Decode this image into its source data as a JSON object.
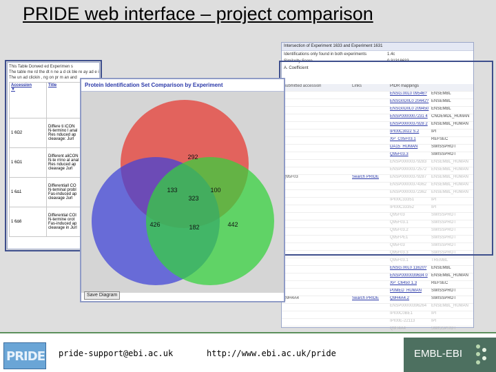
{
  "slide": {
    "title": "PRIDE web interface – project comparison"
  },
  "left_panel": {
    "intro_lines": [
      "This Table Dorwed ed Experimen s",
      "The table me rd the dt n ne a d ck ble re ay ad e ind",
      "The un ad clickin , ng on pr m  an and"
    ],
    "headers": [
      "Accession",
      "Title"
    ],
    "rows": [
      {
        "accession": "1 6Ω2",
        "title_lines": [
          "Differe ti  iCON",
          "N-termino l anal",
          "Res  nduced ap",
          "cleavage: Jurl"
        ]
      },
      {
        "accession": "1 6Ω1",
        "title_lines": [
          "Different aliCON",
          "N-te rrino al anal",
          "Res  nduced ap",
          "cleavage  Jurl"
        ]
      },
      {
        "accession": "1 6∆1",
        "title_lines": [
          "Differentiall CO",
          "N-teminal probl",
          "Fas-induced ap",
          "cleavage  Jurl"
        ]
      },
      {
        "accession": "1 6∆6",
        "title_lines": [
          "Differential COI",
          "N-termine orot",
          "Fas-induced ap",
          "cleavage in Jurl"
        ]
      }
    ]
  },
  "venn_panel": {
    "title": "Protein Identification Set Comparison by Experiment",
    "button_label": "Save Diagram",
    "circle_colors": {
      "red": "#e8372f",
      "blue": "#3f42d8",
      "green": "#33d23b"
    },
    "counts": {
      "red_only": "292",
      "blue_only": "426",
      "green_only": "442",
      "red_blue": "133",
      "red_green": "100",
      "blue_green": "182",
      "all": "323"
    }
  },
  "right_panel": {
    "header_line": "Intersection of Experiment 1633 and Experiment 1631",
    "meta": [
      {
        "label": "Identifications only found in both experiments",
        "value": "1.4c"
      },
      {
        "label": "Similarity Score",
        "value": "0.31318633"
      },
      {
        "label": "A. Coefficient",
        "value": ""
      }
    ],
    "columns": [
      "Submitted accession",
      "Links",
      "PIDR mappings",
      ""
    ],
    "rows": [
      {
        "acc": "",
        "link": "",
        "map": "ENSG.00L0 09546?",
        "db": "ENSEMBL",
        "grey": false
      },
      {
        "acc": "",
        "link": "",
        "map": "ENSG0D0L0 20442?",
        "db": "ENSEMBL",
        "grey": false
      },
      {
        "acc": "",
        "link": "",
        "map": "ENSG0D0L0 209450",
        "db": "ENSEMBL",
        "grey": false
      },
      {
        "acc": "",
        "link": "",
        "map": "ENSP0000007231 4",
        "db": "CNOEMDL_HUMAN",
        "grey": false
      },
      {
        "acc": "",
        "link": "",
        "map": "ENSP0000037928 2",
        "db": "ENSEMBL_HUMAN",
        "grey": false
      },
      {
        "acc": "",
        "link": "",
        "map": "IPI00C3022 S.2",
        "db": "IPI",
        "grey": false
      },
      {
        "acc": "",
        "link": "",
        "map": "XP_C05F03.1",
        "db": "REFSEC",
        "grey": false
      },
      {
        "acc": "",
        "link": "",
        "map": "DA15_HUMAN",
        "db": "SWISSPROT",
        "grey": false
      },
      {
        "acc": "",
        "link": "",
        "map": "Q95F03.3",
        "db": "SWISSPROT",
        "grey": false
      },
      {
        "acc": "",
        "link": "",
        "map": "ENSP00000379283",
        "db": "ENSEMBL_HUMAN",
        "grey": true
      },
      {
        "acc": "",
        "link": "",
        "map": "ENSP00000372572",
        "db": "ENSEMBL_HUMAN",
        "grey": true
      },
      {
        "acc": "Q95F03",
        "link": "Search PRIDE",
        "map": "ENSP00000379287",
        "db": "ENSEMBL_HUMAN",
        "grey": true
      },
      {
        "acc": "",
        "link": "",
        "map": "ENSP00000374362",
        "db": "ENSEMBL_HUMAN",
        "grey": true
      },
      {
        "acc": "",
        "link": "",
        "map": "ENSP00000372362",
        "db": "ENSEMBL_HUMAN",
        "grey": true
      },
      {
        "acc": "",
        "link": "",
        "map": "IPI00C33351",
        "db": "IPI",
        "grey": true
      },
      {
        "acc": "",
        "link": "",
        "map": "IPI00C33352",
        "db": "IPI",
        "grey": true
      },
      {
        "acc": "",
        "link": "",
        "map": "Q95F03",
        "db": "SWISSPROT",
        "grey": true
      },
      {
        "acc": "",
        "link": "",
        "map": "Q95F03.1",
        "db": "SWISSPROT",
        "grey": true
      },
      {
        "acc": "",
        "link": "",
        "map": "Q95F03.2",
        "db": "SWISSPROT",
        "grey": true
      },
      {
        "acc": "",
        "link": "",
        "map": "Q95FPE1",
        "db": "SWISSPROT",
        "grey": true
      },
      {
        "acc": "",
        "link": "",
        "map": "Q95F03",
        "db": "SWISSPROT",
        "grey": true
      },
      {
        "acc": "",
        "link": "",
        "map": "Q95F03.3",
        "db": "SWISSPROT",
        "grey": true
      },
      {
        "acc": "",
        "link": "",
        "map": "Q95F03.1",
        "db": "TREMBL",
        "grey": true
      },
      {
        "acc": "",
        "link": "",
        "map": "ENSG.00L0 11620?",
        "db": "ENSEMBL",
        "grey": false
      },
      {
        "acc": "",
        "link": "",
        "map": "ENSP0000039634 0",
        "db": "ENSEMBL_HUMAN",
        "grey": false
      },
      {
        "acc": "",
        "link": "",
        "map": "XP_C6450 1.3",
        "db": "REFSEC",
        "grey": false
      },
      {
        "acc": "",
        "link": "",
        "map": "P0MED_HUMAN",
        "db": "SWISSPROT",
        "grey": false
      },
      {
        "acc": "Q9H4A4",
        "link": "Search PRIDE",
        "map": "Q9H4A4.2",
        "db": "SWISSPROT",
        "grey": false
      },
      {
        "acc": "",
        "link": "",
        "map": "ENSP00000396264",
        "db": "ENSEMBL_HUMAN",
        "grey": true
      },
      {
        "acc": "",
        "link": "",
        "map": "IPI00C0BE1",
        "db": "IPI",
        "grey": true
      },
      {
        "acc": "",
        "link": "",
        "map": "IPI00E-22113",
        "db": "IPI",
        "grey": true
      },
      {
        "acc": "",
        "link": "",
        "map": "Q9H4A4",
        "db": "SWISSPROT",
        "grey": true
      },
      {
        "acc": "",
        "link": "",
        "map": "Q9H4A4",
        "db": "SWISSPROT",
        "grey": true
      },
      {
        "acc": "",
        "link": "",
        "map": "Q9E.MS.1",
        "db": "TREMBL",
        "grey": true
      }
    ]
  },
  "footer": {
    "logo_text": "PRIDE",
    "email": "pride-support@ebi.ac.uk",
    "url": "http://www.ebi.ac.uk/pride",
    "embl_text": "EMBL-EBI"
  }
}
